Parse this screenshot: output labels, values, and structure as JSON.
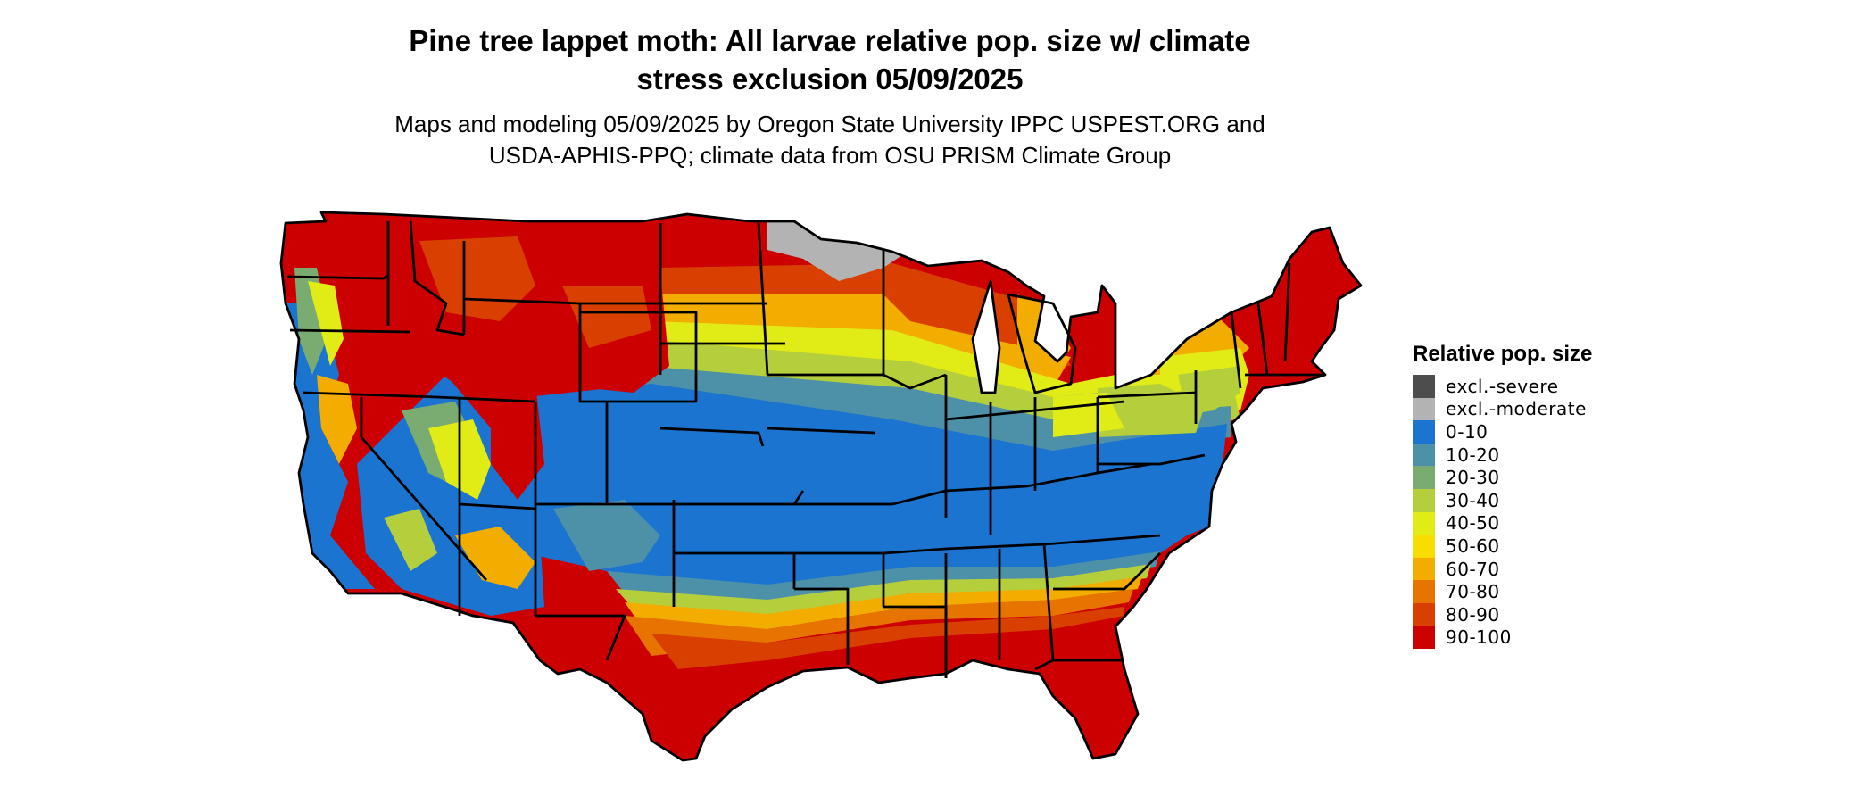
{
  "title_line1": "Pine tree lappet moth: All larvae relative pop. size w/ climate",
  "title_line2": "stress exclusion 05/09/2025",
  "subtitle_line1": "Maps and modeling 05/09/2025 by Oregon State University IPPC USPEST.ORG and",
  "subtitle_line2": "USDA-APHIS-PPQ; climate data from OSU PRISM Climate Group",
  "legend": {
    "title": "Relative pop. size",
    "items": [
      {
        "label": "excl.-severe",
        "color": "#4d4d4d"
      },
      {
        "label": "excl.-moderate",
        "color": "#b3b3b3"
      },
      {
        "label": "0-10",
        "color": "#1a74d0"
      },
      {
        "label": "10-20",
        "color": "#4c91a8"
      },
      {
        "label": "20-30",
        "color": "#7aab70"
      },
      {
        "label": "30-40",
        "color": "#b5cf3c"
      },
      {
        "label": "40-50",
        "color": "#e1ec16"
      },
      {
        "label": "50-60",
        "color": "#f8de00"
      },
      {
        "label": "60-70",
        "color": "#f2ad00"
      },
      {
        "label": "70-80",
        "color": "#e87400"
      },
      {
        "label": "80-90",
        "color": "#d94000"
      },
      {
        "label": "90-100",
        "color": "#cc0000"
      }
    ]
  }
}
